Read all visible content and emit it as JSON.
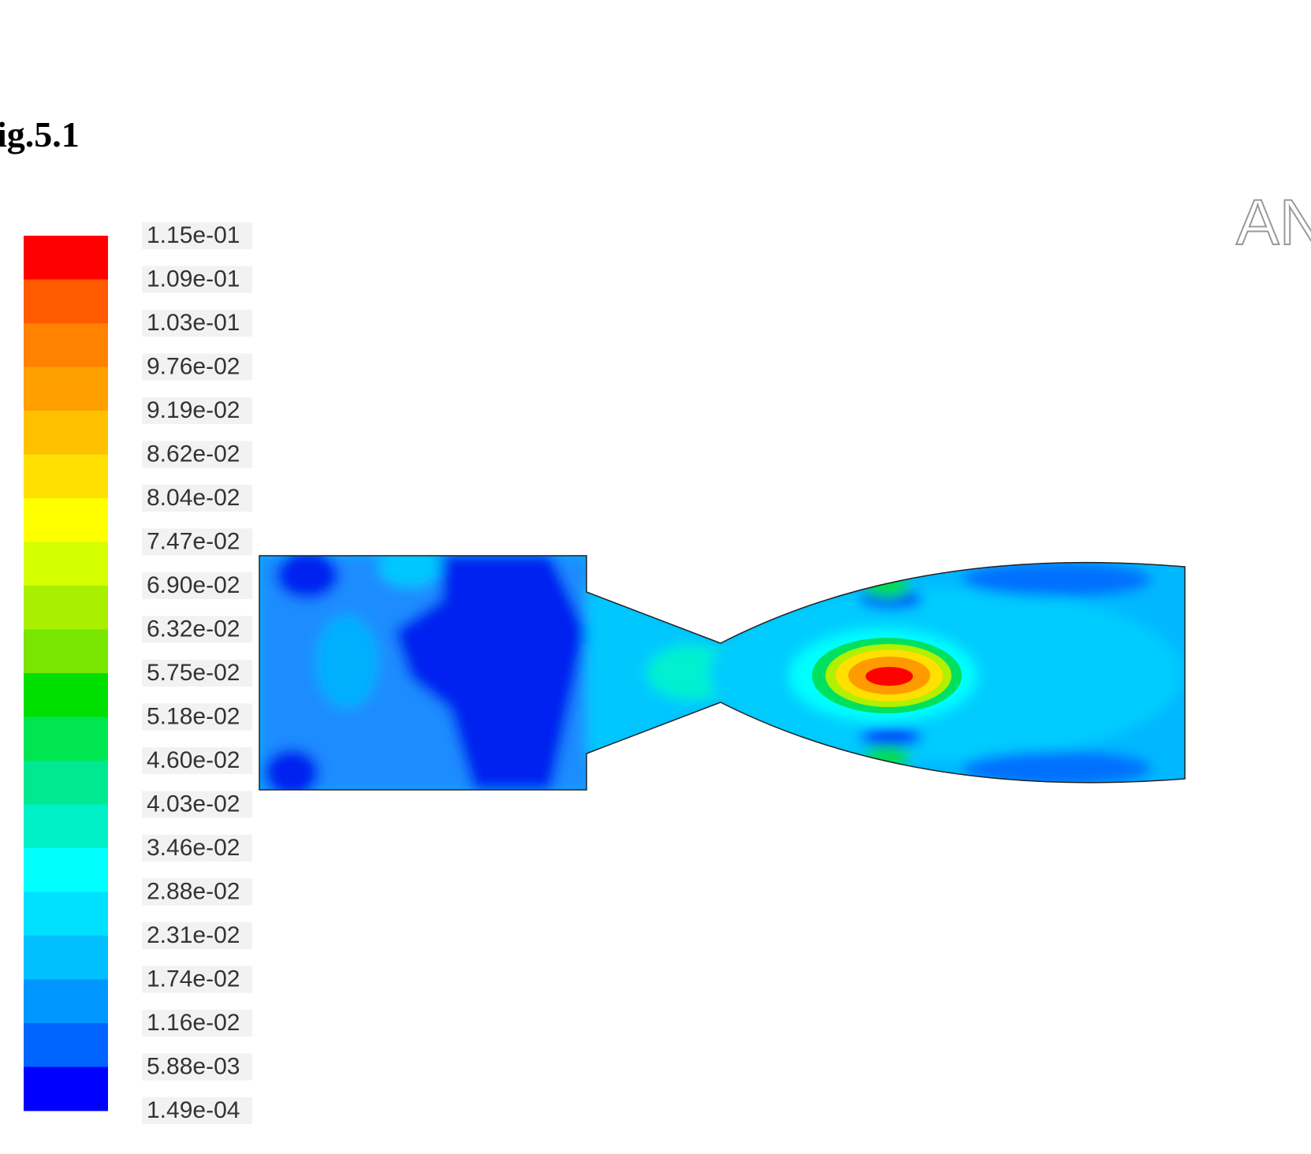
{
  "caption": "ig.5.1",
  "logo": "AN",
  "colorbar": {
    "labels": [
      "1.15e-01",
      "1.09e-01",
      "1.03e-01",
      "9.76e-02",
      "9.19e-02",
      "8.62e-02",
      "8.04e-02",
      "7.47e-02",
      "6.90e-02",
      "6.32e-02",
      "5.75e-02",
      "5.18e-02",
      "4.60e-02",
      "4.03e-02",
      "3.46e-02",
      "2.88e-02",
      "2.31e-02",
      "1.74e-02",
      "1.16e-02",
      "5.88e-03",
      "1.49e-04"
    ],
    "colors": [
      "#ff0000",
      "#ff5a00",
      "#ff8200",
      "#ffa000",
      "#ffc000",
      "#ffe000",
      "#ffff00",
      "#d4ff00",
      "#a8f000",
      "#78e600",
      "#00e000",
      "#00e650",
      "#00e890",
      "#00f0c8",
      "#00ffff",
      "#00e0ff",
      "#00c0ff",
      "#0096ff",
      "#0064ff",
      "#0000ff"
    ]
  }
}
